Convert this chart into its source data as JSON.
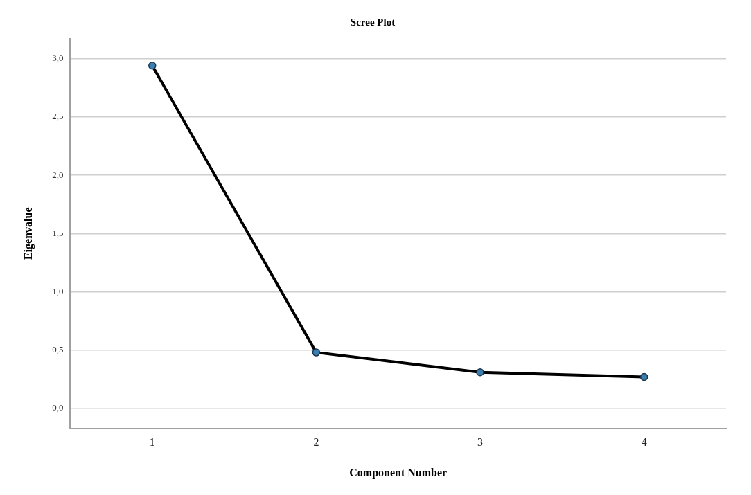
{
  "chart_data": {
    "type": "line",
    "title": "Scree Plot",
    "xlabel": "Component Number",
    "ylabel": "Eigenvalue",
    "categories": [
      "1",
      "2",
      "3",
      "4"
    ],
    "series": [
      {
        "color": "#000000",
        "values": [
          2.94,
          0.48,
          0.31,
          0.27
        ]
      }
    ],
    "ylim": [
      -0.17,
      3.17
    ],
    "yticks": [
      {
        "value": 0,
        "label": "0,0"
      },
      {
        "value": 0.5,
        "label": "0,5"
      },
      {
        "value": 1,
        "label": "1,0"
      },
      {
        "value": 1.5,
        "label": "1,5"
      },
      {
        "value": 2,
        "label": "2,0"
      },
      {
        "value": 2.5,
        "label": "2,5"
      },
      {
        "value": 3,
        "label": "3,0"
      }
    ],
    "grid": "y",
    "legend": false,
    "marker": "circle",
    "line_style": "solid"
  }
}
